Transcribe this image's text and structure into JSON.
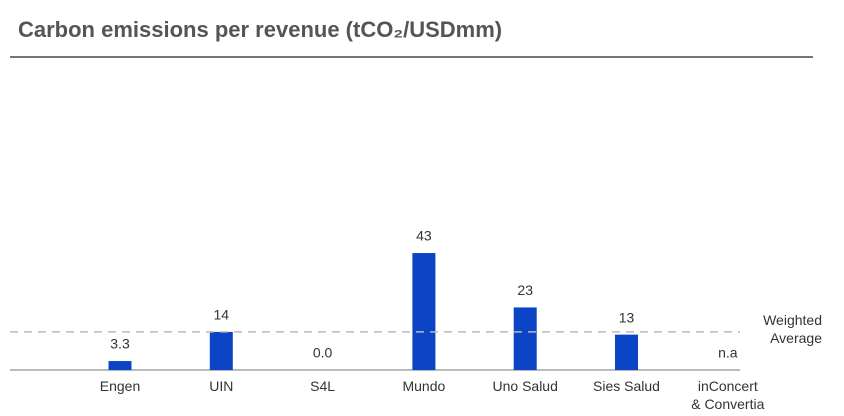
{
  "chart_data": {
    "type": "bar",
    "title": "Carbon emissions per revenue (tCO₂/USDmm)",
    "categories": [
      "Engen",
      "UIN",
      "S4L",
      "Mundo",
      "Uno Salud",
      "Sies Salud",
      "inConcert\n& Convertia"
    ],
    "values": [
      3.3,
      14,
      0.0,
      43,
      23,
      13,
      null
    ],
    "value_labels": [
      "3.3",
      "14",
      "0.0",
      "43",
      "23",
      "13",
      "n.a"
    ],
    "color": "#0b45c6",
    "ylim": [
      0,
      50
    ],
    "reference_line": {
      "value": 14,
      "label": "Weighted\nAverage",
      "color": "#bbbbbb"
    }
  }
}
